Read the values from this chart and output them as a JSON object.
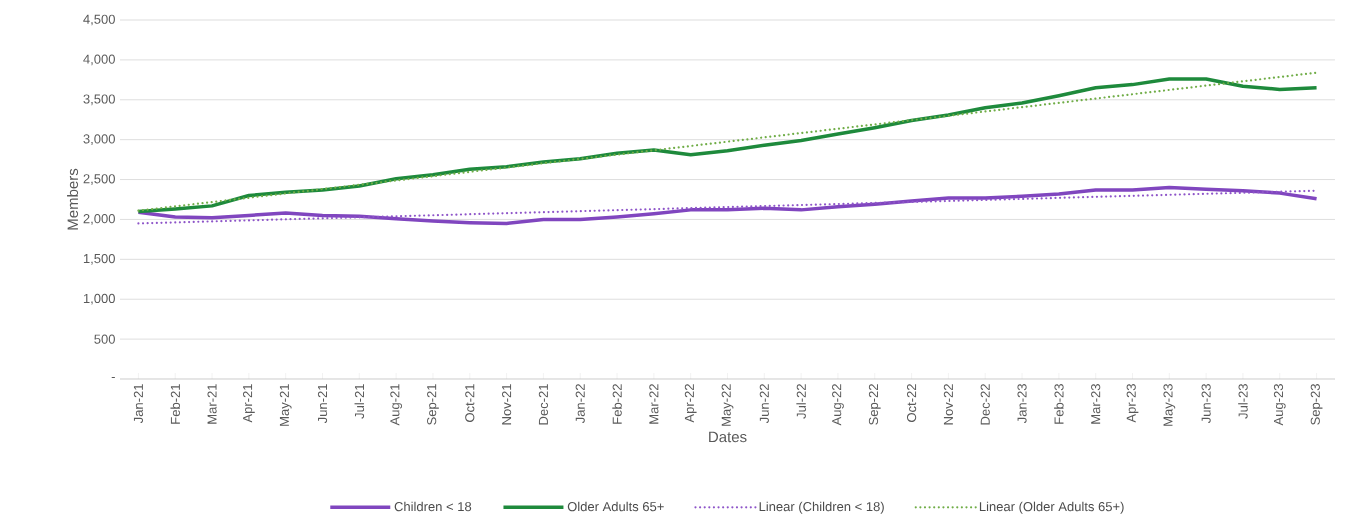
{
  "chart_data": {
    "type": "line",
    "xlabel": "Dates",
    "ylabel": "Members",
    "categories": [
      "Jan-21",
      "Feb-21",
      "Mar-21",
      "Apr-21",
      "May-21",
      "Jun-21",
      "Jul-21",
      "Aug-21",
      "Sep-21",
      "Oct-21",
      "Nov-21",
      "Dec-21",
      "Jan-22",
      "Feb-22",
      "Mar-22",
      "Apr-22",
      "May-22",
      "Jun-22",
      "Jul-22",
      "Aug-22",
      "Sep-22",
      "Oct-22",
      "Nov-22",
      "Dec-22",
      "Jan-23",
      "Feb-23",
      "Mar-23",
      "Apr-23",
      "May-23",
      "Jun-23",
      "Jul-23",
      "Aug-23",
      "Sep-23"
    ],
    "series": [
      {
        "name": "Children < 18",
        "color": "#8046bf",
        "line_style": "solid",
        "values": [
          2090,
          2030,
          2020,
          2050,
          2080,
          2050,
          2040,
          2010,
          1980,
          1960,
          1950,
          2000,
          2000,
          2030,
          2070,
          2120,
          2120,
          2140,
          2120,
          2160,
          2190,
          2230,
          2270,
          2270,
          2290,
          2320,
          2370,
          2370,
          2400,
          2380,
          2360,
          2330,
          2260
        ]
      },
      {
        "name": "Older Adults 65+",
        "color": "#1e8a3c",
        "line_style": "solid",
        "values": [
          2100,
          2130,
          2170,
          2300,
          2340,
          2370,
          2420,
          2510,
          2560,
          2630,
          2660,
          2720,
          2760,
          2830,
          2870,
          2810,
          2860,
          2930,
          2990,
          3070,
          3150,
          3240,
          3310,
          3400,
          3460,
          3550,
          3650,
          3690,
          3760,
          3760,
          3670,
          3630,
          3650
        ]
      },
      {
        "name": "Linear (Children < 18)",
        "color": "#8e55c9",
        "line_style": "dotted",
        "values": [
          1950,
          null,
          null,
          null,
          null,
          null,
          null,
          null,
          null,
          null,
          null,
          null,
          null,
          null,
          null,
          null,
          null,
          null,
          null,
          null,
          null,
          null,
          null,
          null,
          null,
          null,
          null,
          null,
          null,
          null,
          null,
          null,
          2360
        ]
      },
      {
        "name": "Linear (Older Adults 65+)",
        "color": "#70ad47",
        "line_style": "dotted",
        "values": [
          2110,
          null,
          null,
          null,
          null,
          null,
          null,
          null,
          null,
          null,
          null,
          null,
          null,
          null,
          null,
          null,
          null,
          null,
          null,
          null,
          null,
          null,
          null,
          null,
          null,
          null,
          null,
          null,
          null,
          null,
          null,
          null,
          3840
        ]
      }
    ],
    "ylim": [
      0,
      4500
    ],
    "yticks": [
      {
        "value": 0,
        "label": "-"
      },
      {
        "value": 500,
        "label": "500"
      },
      {
        "value": 1000,
        "label": "1,000"
      },
      {
        "value": 1500,
        "label": "1,500"
      },
      {
        "value": 2000,
        "label": "2,000"
      },
      {
        "value": 2500,
        "label": "2,500"
      },
      {
        "value": 3000,
        "label": "3,000"
      },
      {
        "value": 3500,
        "label": "3,500"
      },
      {
        "value": 4000,
        "label": "4,000"
      },
      {
        "value": 4500,
        "label": "4,500"
      }
    ],
    "grid": "y",
    "legend": "bottom",
    "marker": "none"
  }
}
